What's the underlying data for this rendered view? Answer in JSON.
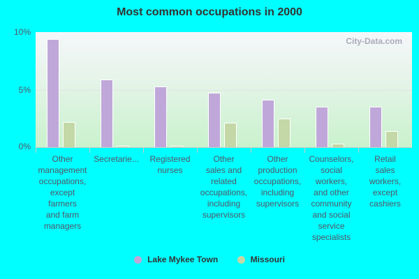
{
  "chart_data": {
    "type": "bar",
    "title": "Most common occupations in 2000",
    "xlabel": "",
    "ylabel": "",
    "ylim": [
      0,
      10
    ],
    "yticks": [
      "0%",
      "5%",
      "10%"
    ],
    "categories": [
      "Other management occupations, except farmers and farm managers",
      "Secretarie...",
      "Registered nurses",
      "Other sales and related occupations, including supervisors",
      "Other production occupations, including supervisors",
      "Counselors, social workers, and other community and social service specialists",
      "Retail sales workers, except cashiers"
    ],
    "series": [
      {
        "name": "Lake Mykee Town",
        "color": "#bfa8d9",
        "values": [
          9.4,
          5.9,
          5.3,
          4.7,
          4.1,
          3.5,
          3.5
        ]
      },
      {
        "name": "Missouri",
        "color": "#c3d8a6",
        "values": [
          2.2,
          0.1,
          0.1,
          2.1,
          2.5,
          0.3,
          1.4
        ]
      }
    ],
    "legend_position": "bottom",
    "grid": true
  },
  "labels_wrapped": [
    "Other\nmanagement\noccupations,\nexcept\nfarmers\nand farm\nmanagers",
    "Secretarie...",
    "Registered\nnurses",
    "Other\nsales and\nrelated\noccupations,\nincluding\nsupervisors",
    "Other\nproduction\noccupations,\nincluding\nsupervisors",
    "Counselors,\nsocial\nworkers,\nand other\ncommunity\nand social\nservice\nspecialists",
    "Retail\nsales\nworkers,\nexcept\ncashiers"
  ],
  "watermark": "City-Data.com"
}
